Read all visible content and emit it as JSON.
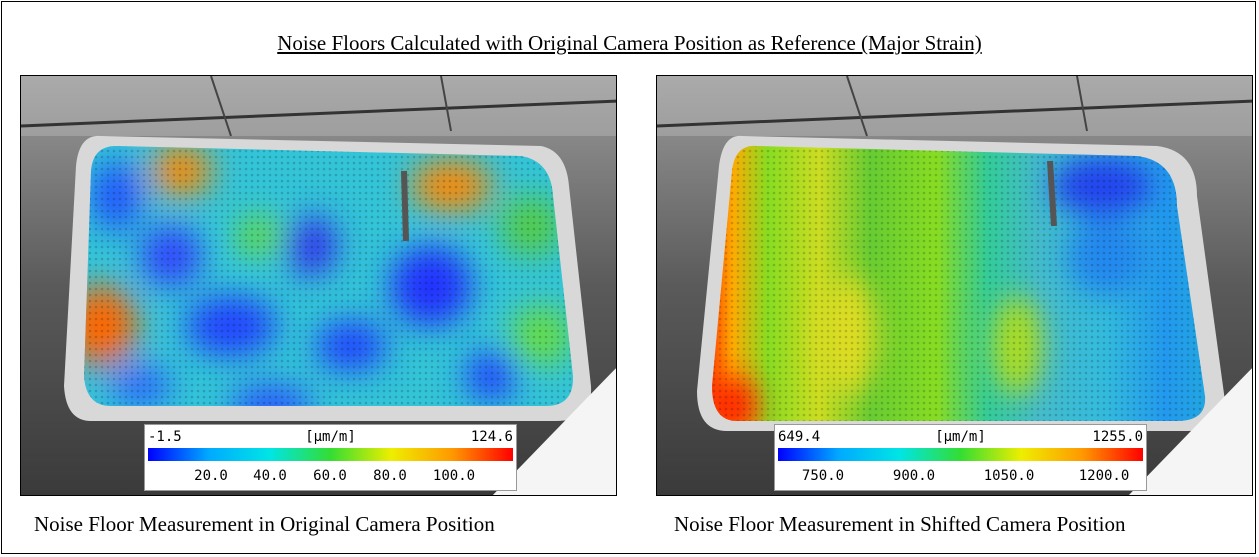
{
  "title": "Noise Floors Calculated with Original Camera Position as Reference (Major Strain)",
  "left_panel": {
    "caption": "Noise Floor Measurement in Original Camera Position",
    "legend": {
      "min": "-1.5",
      "unit": "[µm/m]",
      "max": "124.6",
      "ticks": [
        "20.0",
        "40.0",
        "60.0",
        "80.0",
        "100.0"
      ]
    }
  },
  "right_panel": {
    "caption": "Noise Floor Measurement in Shifted Camera Position",
    "legend": {
      "min": "649.4",
      "unit": "[µm/m]",
      "max": "1255.0",
      "ticks": [
        "750.0",
        "900.0",
        "1050.0",
        "1200.0"
      ]
    }
  },
  "colors": {
    "colormap": [
      "#0000ff",
      "#00aaff",
      "#00e5e5",
      "#33dd33",
      "#eeee00",
      "#ff9900",
      "#ff0000"
    ]
  }
}
